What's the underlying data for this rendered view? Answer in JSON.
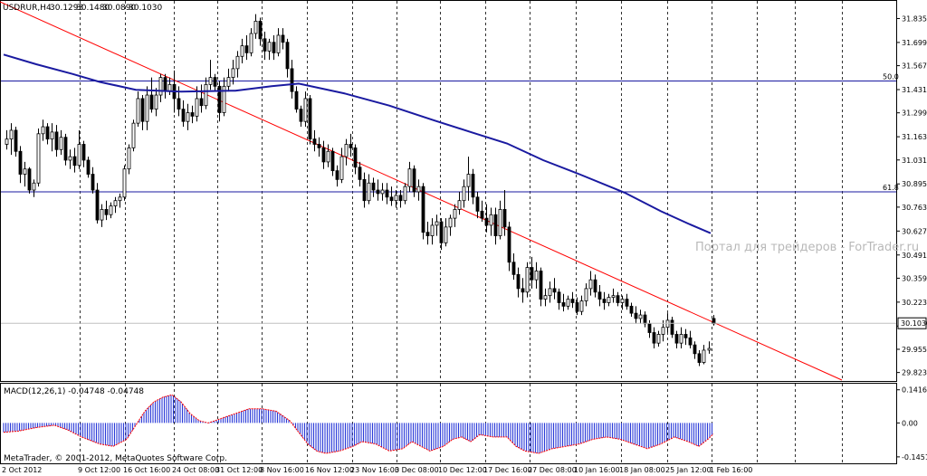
{
  "chart_data": {
    "type": "candlestick",
    "symbol_header": "USDRUR,H4",
    "ohlc": {
      "open": "30.1293",
      "high": "30.1480",
      "low": "30.0890",
      "close": "30.1030"
    },
    "current_price": "30.1030",
    "ylim": [
      29.78,
      31.93
    ],
    "y_ticks": [
      "31.8350",
      "31.6990",
      "31.5670",
      "31.4310",
      "31.2990",
      "31.1630",
      "31.0310",
      "30.8950",
      "30.7630",
      "30.6270",
      "30.4910",
      "30.3590",
      "30.2230",
      "30.0870",
      "29.9550",
      "29.8230"
    ],
    "x_ticks": [
      "2 Oct 2012",
      "9 Oct 12:00",
      "16 Oct 16:00",
      "24 Oct 08:00",
      "31 Oct 12:00",
      "8 Nov 16:00",
      "16 Nov 12:00",
      "23 Nov 16:00",
      "3 Dec 08:00",
      "10 Dec 12:00",
      "17 Dec 16:00",
      "27 Dec 08:00",
      "10 Jan 16:00",
      "18 Jan 08:00",
      "25 Jan 12:00",
      "1 Feb 16:00"
    ],
    "fibo_levels": [
      {
        "label": "50.0",
        "value": 31.48
      },
      {
        "label": "61.8",
        "value": 30.85
      }
    ],
    "trendline": {
      "from": [
        0,
        31.93
      ],
      "to": [
        930,
        29.78
      ]
    },
    "moving_average": [
      [
        4,
        31.63
      ],
      [
        40,
        31.575
      ],
      [
        80,
        31.52
      ],
      [
        110,
        31.475
      ],
      [
        150,
        31.43
      ],
      [
        200,
        31.42
      ],
      [
        260,
        31.425
      ],
      [
        300,
        31.45
      ],
      [
        330,
        31.465
      ],
      [
        380,
        31.41
      ],
      [
        430,
        31.34
      ],
      [
        480,
        31.255
      ],
      [
        520,
        31.19
      ],
      [
        560,
        31.125
      ],
      [
        600,
        31.03
      ],
      [
        640,
        30.95
      ],
      [
        690,
        30.845
      ],
      [
        730,
        30.74
      ],
      [
        760,
        30.67
      ],
      [
        785,
        30.615
      ]
    ],
    "candles": [
      [
        7,
        31.12,
        31.2,
        31.09,
        31.15
      ],
      [
        12,
        31.15,
        31.24,
        31.06,
        31.2
      ],
      [
        17,
        31.2,
        31.22,
        31.05,
        31.08
      ],
      [
        22,
        31.08,
        31.11,
        30.9,
        30.95
      ],
      [
        27,
        30.95,
        31.02,
        30.88,
        30.98
      ],
      [
        32,
        30.98,
        30.99,
        30.84,
        30.86
      ],
      [
        37,
        30.86,
        30.92,
        30.82,
        30.9
      ],
      [
        42,
        30.9,
        31.21,
        30.88,
        31.18
      ],
      [
        47,
        31.18,
        31.26,
        31.14,
        31.22
      ],
      [
        52,
        31.22,
        31.24,
        31.12,
        31.15
      ],
      [
        57,
        31.15,
        31.24,
        31.08,
        31.19
      ],
      [
        62,
        31.19,
        31.23,
        31.05,
        31.09
      ],
      [
        67,
        31.09,
        31.2,
        31.06,
        31.16
      ],
      [
        72,
        31.16,
        31.18,
        31.0,
        31.03
      ],
      [
        77,
        31.03,
        31.09,
        30.98,
        31.05
      ],
      [
        82,
        31.05,
        31.1,
        30.96,
        31.0
      ],
      [
        87,
        31.0,
        31.2,
        30.98,
        31.12
      ],
      [
        92,
        31.12,
        31.14,
        30.99,
        31.03
      ],
      [
        97,
        31.03,
        31.05,
        30.93,
        30.95
      ],
      [
        102,
        30.95,
        30.99,
        30.84,
        30.86
      ],
      [
        107,
        30.86,
        30.9,
        30.67,
        30.69
      ],
      [
        112,
        30.69,
        30.78,
        30.65,
        30.75
      ],
      [
        117,
        30.75,
        30.8,
        30.69,
        30.72
      ],
      [
        122,
        30.72,
        30.79,
        30.7,
        30.77
      ],
      [
        127,
        30.77,
        30.82,
        30.73,
        30.8
      ],
      [
        132,
        30.8,
        30.84,
        30.76,
        30.82
      ],
      [
        137,
        30.82,
        31.0,
        30.8,
        30.98
      ],
      [
        142,
        30.98,
        31.12,
        30.95,
        31.1
      ],
      [
        147,
        31.1,
        31.26,
        31.08,
        31.24
      ],
      [
        152,
        31.24,
        31.42,
        31.22,
        31.38
      ],
      [
        157,
        31.38,
        31.4,
        31.2,
        31.25
      ],
      [
        162,
        31.25,
        31.45,
        31.2,
        31.4
      ],
      [
        167,
        31.4,
        31.5,
        31.3,
        31.32
      ],
      [
        172,
        31.32,
        31.44,
        31.28,
        31.4
      ],
      [
        177,
        31.4,
        31.52,
        31.36,
        31.5
      ],
      [
        182,
        31.5,
        31.52,
        31.38,
        31.42
      ],
      [
        187,
        31.42,
        31.5,
        31.4,
        31.46
      ],
      [
        192,
        31.46,
        31.54,
        31.3,
        31.38
      ],
      [
        197,
        31.38,
        31.45,
        31.28,
        31.32
      ],
      [
        202,
        31.32,
        31.37,
        31.22,
        31.25
      ],
      [
        207,
        31.25,
        31.35,
        31.2,
        31.3
      ],
      [
        212,
        31.3,
        31.34,
        31.24,
        31.28
      ],
      [
        217,
        31.28,
        31.45,
        31.25,
        31.38
      ],
      [
        222,
        31.38,
        31.46,
        31.3,
        31.34
      ],
      [
        227,
        31.34,
        31.5,
        31.32,
        31.46
      ],
      [
        232,
        31.46,
        31.6,
        31.43,
        31.5
      ],
      [
        237,
        31.5,
        31.52,
        31.42,
        31.45
      ],
      [
        242,
        31.45,
        31.48,
        31.25,
        31.3
      ],
      [
        247,
        31.3,
        31.5,
        31.28,
        31.45
      ],
      [
        252,
        31.45,
        31.55,
        31.42,
        31.5
      ],
      [
        257,
        31.5,
        31.6,
        31.46,
        31.55
      ],
      [
        262,
        31.55,
        31.65,
        31.5,
        31.62
      ],
      [
        267,
        31.62,
        31.72,
        31.58,
        31.68
      ],
      [
        272,
        31.68,
        31.74,
        31.6,
        31.64
      ],
      [
        277,
        31.64,
        31.78,
        31.62,
        31.75
      ],
      [
        282,
        31.75,
        31.86,
        31.72,
        31.82
      ],
      [
        287,
        31.82,
        31.84,
        31.68,
        31.72
      ],
      [
        292,
        31.72,
        31.76,
        31.6,
        31.65
      ],
      [
        297,
        31.65,
        31.72,
        31.6,
        31.7
      ],
      [
        302,
        31.7,
        31.74,
        31.6,
        31.64
      ],
      [
        307,
        31.64,
        31.78,
        31.62,
        31.74
      ],
      [
        312,
        31.74,
        31.78,
        31.66,
        31.7
      ],
      [
        317,
        31.7,
        31.72,
        31.5,
        31.55
      ],
      [
        322,
        31.55,
        31.6,
        31.38,
        31.42
      ],
      [
        327,
        31.42,
        31.45,
        31.3,
        31.32
      ],
      [
        332,
        31.32,
        31.34,
        31.22,
        31.25
      ],
      [
        337,
        31.25,
        31.42,
        31.22,
        31.38
      ],
      [
        342,
        31.38,
        31.4,
        31.12,
        31.15
      ],
      [
        347,
        31.15,
        31.2,
        31.08,
        31.12
      ],
      [
        352,
        31.12,
        31.16,
        31.05,
        31.1
      ],
      [
        357,
        31.1,
        31.14,
        30.98,
        31.02
      ],
      [
        362,
        31.02,
        31.12,
        30.99,
        31.08
      ],
      [
        367,
        31.08,
        31.1,
        30.94,
        30.97
      ],
      [
        372,
        30.97,
        31.0,
        30.88,
        30.92
      ],
      [
        377,
        30.92,
        31.1,
        30.9,
        31.05
      ],
      [
        382,
        31.05,
        31.15,
        31.0,
        31.12
      ],
      [
        387,
        31.12,
        31.18,
        31.05,
        31.1
      ],
      [
        392,
        31.1,
        31.12,
        30.95,
        30.99
      ],
      [
        397,
        30.99,
        31.02,
        30.88,
        30.92
      ],
      [
        402,
        30.92,
        30.96,
        30.76,
        30.8
      ],
      [
        407,
        30.8,
        30.95,
        30.78,
        30.9
      ],
      [
        412,
        30.9,
        30.93,
        30.82,
        30.86
      ],
      [
        417,
        30.86,
        30.92,
        30.8,
        30.84
      ],
      [
        422,
        30.84,
        30.9,
        30.8,
        30.86
      ],
      [
        427,
        30.86,
        30.9,
        30.78,
        30.82
      ],
      [
        432,
        30.82,
        30.88,
        30.77,
        30.8
      ],
      [
        437,
        30.8,
        30.86,
        30.76,
        30.83
      ],
      [
        442,
        30.83,
        30.86,
        30.76,
        30.8
      ],
      [
        447,
        30.8,
        30.9,
        30.78,
        30.88
      ],
      [
        452,
        30.88,
        31.02,
        30.85,
        30.98
      ],
      [
        457,
        30.98,
        31.0,
        30.82,
        30.85
      ],
      [
        462,
        30.85,
        30.92,
        30.8,
        30.88
      ],
      [
        467,
        30.88,
        30.9,
        30.58,
        30.62
      ],
      [
        472,
        30.62,
        30.68,
        30.55,
        30.6
      ],
      [
        477,
        30.6,
        30.7,
        30.55,
        30.66
      ],
      [
        482,
        30.66,
        30.72,
        30.6,
        30.68
      ],
      [
        487,
        30.68,
        30.7,
        30.52,
        30.56
      ],
      [
        492,
        30.56,
        30.7,
        30.54,
        30.65
      ],
      [
        497,
        30.65,
        30.72,
        30.6,
        30.7
      ],
      [
        502,
        30.7,
        30.78,
        30.65,
        30.75
      ],
      [
        507,
        30.75,
        30.85,
        30.72,
        30.8
      ],
      [
        512,
        30.8,
        30.92,
        30.76,
        30.88
      ],
      [
        517,
        30.88,
        31.05,
        30.8,
        30.95
      ],
      [
        522,
        30.95,
        30.98,
        30.78,
        30.82
      ],
      [
        527,
        30.82,
        30.85,
        30.7,
        30.74
      ],
      [
        532,
        30.74,
        30.8,
        30.68,
        30.7
      ],
      [
        537,
        30.7,
        30.78,
        30.62,
        30.66
      ],
      [
        542,
        30.66,
        30.76,
        30.6,
        30.72
      ],
      [
        547,
        30.72,
        30.76,
        30.55,
        30.6
      ],
      [
        552,
        30.6,
        30.8,
        30.58,
        30.75
      ],
      [
        557,
        30.75,
        30.86,
        30.6,
        30.65
      ],
      [
        562,
        30.65,
        30.68,
        30.4,
        30.45
      ],
      [
        567,
        30.45,
        30.5,
        30.35,
        30.38
      ],
      [
        572,
        30.38,
        30.42,
        30.25,
        30.3
      ],
      [
        577,
        30.3,
        30.36,
        30.22,
        30.28
      ],
      [
        582,
        30.28,
        30.45,
        30.25,
        30.42
      ],
      [
        587,
        30.42,
        30.48,
        30.3,
        30.35
      ],
      [
        592,
        30.35,
        30.45,
        30.3,
        30.4
      ],
      [
        597,
        30.4,
        30.42,
        30.2,
        30.24
      ],
      [
        602,
        30.24,
        30.3,
        30.2,
        30.26
      ],
      [
        607,
        30.26,
        30.34,
        30.22,
        30.3
      ],
      [
        612,
        30.3,
        30.36,
        30.24,
        30.28
      ],
      [
        617,
        30.28,
        30.3,
        30.18,
        30.22
      ],
      [
        622,
        30.22,
        30.27,
        30.17,
        30.2
      ],
      [
        627,
        30.2,
        30.26,
        30.18,
        30.24
      ],
      [
        632,
        30.24,
        30.28,
        30.19,
        30.22
      ],
      [
        637,
        30.22,
        30.25,
        30.15,
        30.17
      ],
      [
        642,
        30.17,
        30.26,
        30.15,
        30.23
      ],
      [
        647,
        30.23,
        30.33,
        30.2,
        30.3
      ],
      [
        652,
        30.3,
        30.4,
        30.26,
        30.35
      ],
      [
        657,
        30.35,
        30.38,
        30.25,
        30.28
      ],
      [
        662,
        30.28,
        30.32,
        30.2,
        30.24
      ],
      [
        667,
        30.24,
        30.28,
        30.18,
        30.22
      ],
      [
        672,
        30.22,
        30.27,
        30.2,
        30.25
      ],
      [
        677,
        30.25,
        30.3,
        30.22,
        30.26
      ],
      [
        682,
        30.26,
        30.28,
        30.2,
        30.22
      ],
      [
        687,
        30.22,
        30.26,
        30.18,
        30.24
      ],
      [
        692,
        30.24,
        30.27,
        30.18,
        30.2
      ],
      [
        697,
        30.2,
        30.22,
        30.14,
        30.16
      ],
      [
        702,
        30.16,
        30.2,
        30.1,
        30.13
      ],
      [
        707,
        30.13,
        30.18,
        30.1,
        30.15
      ],
      [
        712,
        30.15,
        30.17,
        30.08,
        30.1
      ],
      [
        717,
        30.1,
        30.12,
        30.02,
        30.05
      ],
      [
        722,
        30.05,
        30.08,
        29.96,
        29.99
      ],
      [
        727,
        29.99,
        30.06,
        29.97,
        30.04
      ],
      [
        732,
        30.04,
        30.12,
        30.0,
        30.08
      ],
      [
        737,
        30.08,
        30.16,
        30.05,
        30.12
      ],
      [
        742,
        30.12,
        30.14,
        30.02,
        30.04
      ],
      [
        747,
        30.04,
        30.06,
        29.96,
        29.99
      ],
      [
        752,
        29.99,
        30.08,
        29.96,
        30.04
      ],
      [
        757,
        30.04,
        30.07,
        29.98,
        30.02
      ],
      [
        762,
        30.02,
        30.06,
        29.96,
        29.98
      ],
      [
        767,
        29.98,
        30.0,
        29.9,
        29.93
      ],
      [
        772,
        29.93,
        29.95,
        29.86,
        29.88
      ],
      [
        777,
        29.88,
        29.98,
        29.87,
        29.95
      ],
      [
        783,
        29.95,
        30.0,
        29.93,
        29.96
      ],
      [
        788,
        30.13,
        30.15,
        30.09,
        30.1
      ]
    ],
    "macd": {
      "label": "MACD(12,26,1) -0.04748 -0.04748",
      "ylim": [
        -0.165,
        0.16
      ],
      "y_ticks": [
        {
          "label": "0.14169",
          "value": 0.14169
        },
        {
          "label": "0.00",
          "value": 0.0
        },
        {
          "label": "-0.14516",
          "value": -0.14516
        }
      ],
      "points": [
        [
          4,
          -0.04
        ],
        [
          20,
          -0.035
        ],
        [
          40,
          -0.02
        ],
        [
          60,
          -0.01
        ],
        [
          75,
          -0.03
        ],
        [
          90,
          -0.06
        ],
        [
          110,
          -0.09
        ],
        [
          125,
          -0.1
        ],
        [
          140,
          -0.07
        ],
        [
          150,
          -0.01
        ],
        [
          160,
          0.05
        ],
        [
          170,
          0.09
        ],
        [
          180,
          0.11
        ],
        [
          190,
          0.12
        ],
        [
          200,
          0.09
        ],
        [
          210,
          0.04
        ],
        [
          220,
          0.01
        ],
        [
          230,
          0.0
        ],
        [
          245,
          0.02
        ],
        [
          260,
          0.04
        ],
        [
          275,
          0.06
        ],
        [
          290,
          0.06
        ],
        [
          305,
          0.05
        ],
        [
          320,
          0.01
        ],
        [
          330,
          -0.04
        ],
        [
          340,
          -0.09
        ],
        [
          350,
          -0.12
        ],
        [
          360,
          -0.13
        ],
        [
          375,
          -0.12
        ],
        [
          390,
          -0.1
        ],
        [
          400,
          -0.08
        ],
        [
          415,
          -0.09
        ],
        [
          430,
          -0.12
        ],
        [
          445,
          -0.11
        ],
        [
          455,
          -0.08
        ],
        [
          465,
          -0.1
        ],
        [
          475,
          -0.12
        ],
        [
          490,
          -0.1
        ],
        [
          500,
          -0.07
        ],
        [
          510,
          -0.06
        ],
        [
          520,
          -0.08
        ],
        [
          530,
          -0.05
        ],
        [
          545,
          -0.06
        ],
        [
          560,
          -0.06
        ],
        [
          570,
          -0.1
        ],
        [
          580,
          -0.12
        ],
        [
          595,
          -0.13
        ],
        [
          610,
          -0.11
        ],
        [
          625,
          -0.1
        ],
        [
          640,
          -0.09
        ],
        [
          655,
          -0.07
        ],
        [
          670,
          -0.06
        ],
        [
          685,
          -0.07
        ],
        [
          700,
          -0.09
        ],
        [
          715,
          -0.11
        ],
        [
          730,
          -0.09
        ],
        [
          745,
          -0.06
        ],
        [
          760,
          -0.08
        ],
        [
          772,
          -0.1
        ],
        [
          782,
          -0.07
        ],
        [
          788,
          -0.047
        ]
      ]
    }
  },
  "watermark": "Портал для трейдеров - ForTrader.ru",
  "copyright": "MetaTrader, © 2001-2012, MetaQuotes Software Corp.",
  "colors": {
    "bull": "#000000",
    "bear": "#000000",
    "moving_average": "#1a1aa0",
    "trendline": "#ff0000",
    "fibo": "#1a1aa0",
    "macd_bar": "#2a3ad8",
    "macd_signal": "#ff0000"
  }
}
